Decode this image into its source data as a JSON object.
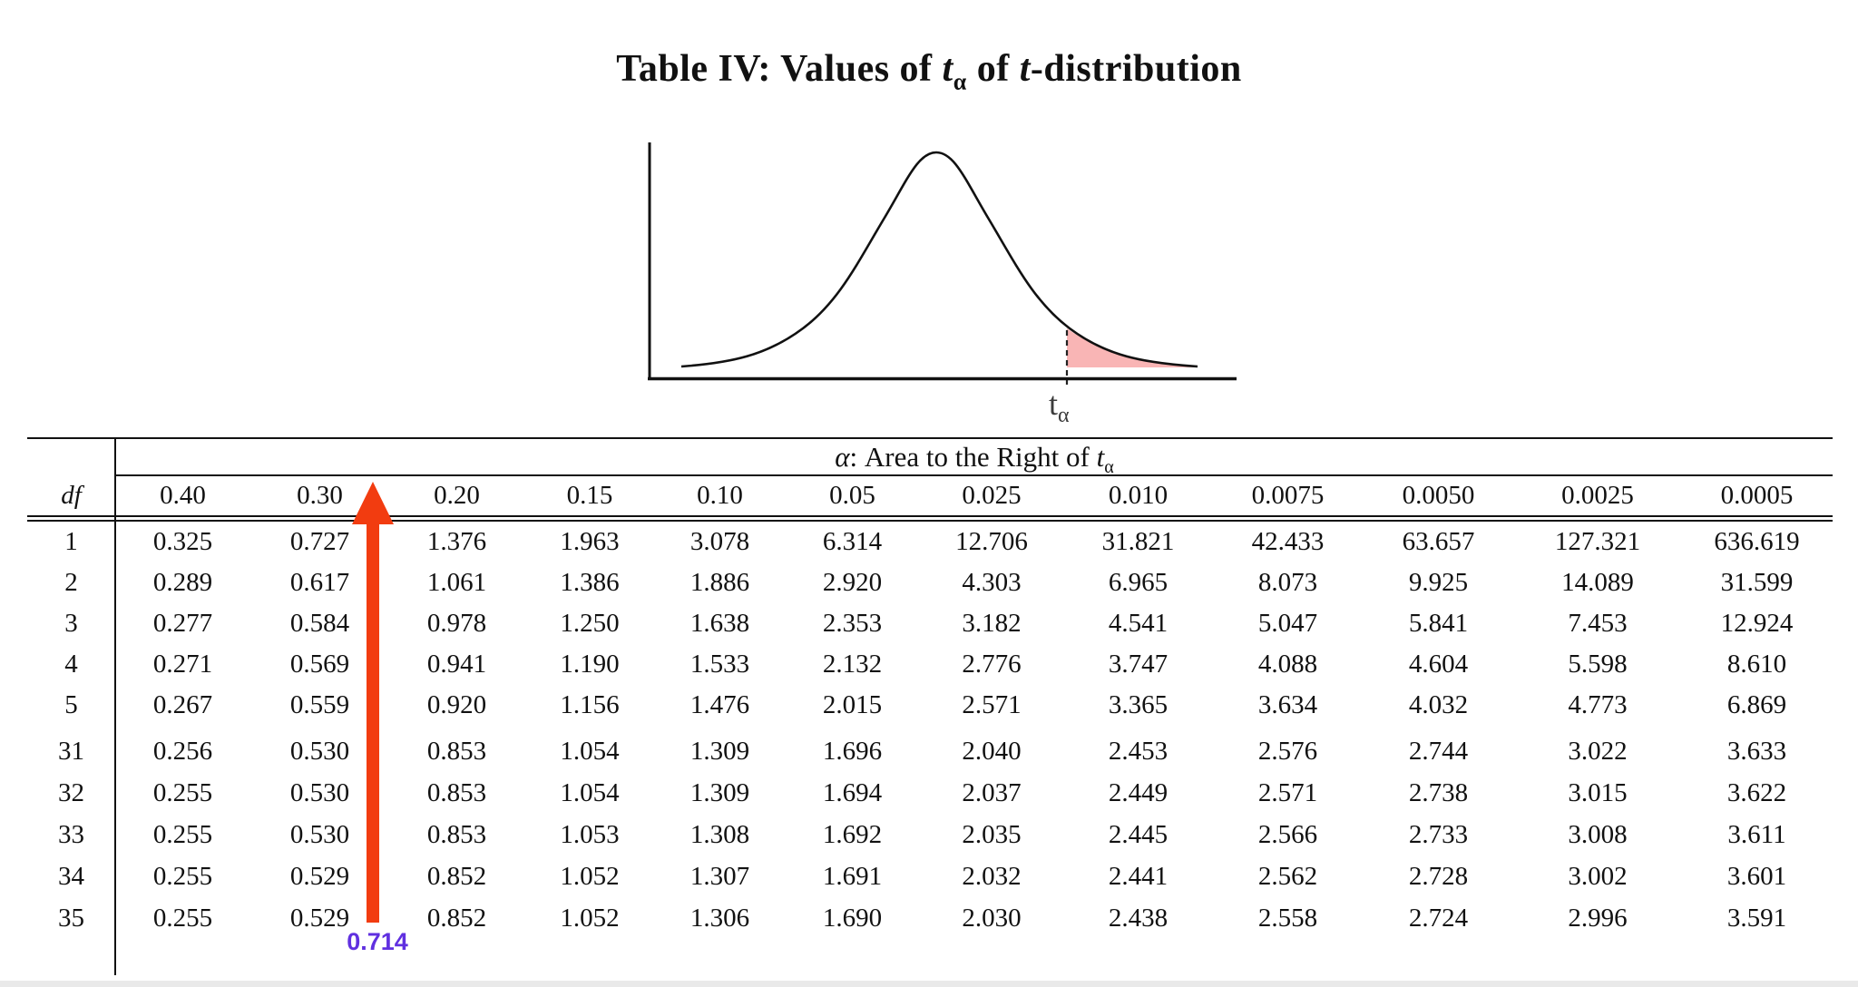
{
  "title": {
    "part1": "Table IV: Values of ",
    "t1": "t",
    "sub1": "α",
    "part2": " of ",
    "t2": "t",
    "part3": "-distribution"
  },
  "diagram": {
    "type": "t-distribution density curve with shaded right tail",
    "tail_label_t": "t",
    "tail_label_sub": "α",
    "curve_color": "#111111",
    "shade_color": "#f9b5b5"
  },
  "table": {
    "span_header": {
      "alpha": "α",
      "colon_text": ":  Area to the Right of ",
      "t": "t",
      "sub": "α"
    },
    "df_label": "df",
    "columns": [
      "0.40",
      "0.30",
      "0.20",
      "0.15",
      "0.10",
      "0.05",
      "0.025",
      "0.010",
      "0.0075",
      "0.0050",
      "0.0025",
      "0.0005"
    ],
    "rows_group1": [
      {
        "df": "1",
        "values": [
          "0.325",
          "0.727",
          "1.376",
          "1.963",
          "3.078",
          "6.314",
          "12.706",
          "31.821",
          "42.433",
          "63.657",
          "127.321",
          "636.619"
        ]
      },
      {
        "df": "2",
        "values": [
          "0.289",
          "0.617",
          "1.061",
          "1.386",
          "1.886",
          "2.920",
          "4.303",
          "6.965",
          "8.073",
          "9.925",
          "14.089",
          "31.599"
        ]
      },
      {
        "df": "3",
        "values": [
          "0.277",
          "0.584",
          "0.978",
          "1.250",
          "1.638",
          "2.353",
          "3.182",
          "4.541",
          "5.047",
          "5.841",
          "7.453",
          "12.924"
        ]
      },
      {
        "df": "4",
        "values": [
          "0.271",
          "0.569",
          "0.941",
          "1.190",
          "1.533",
          "2.132",
          "2.776",
          "3.747",
          "4.088",
          "4.604",
          "5.598",
          "8.610"
        ]
      },
      {
        "df": "5",
        "values": [
          "0.267",
          "0.559",
          "0.920",
          "1.156",
          "1.476",
          "2.015",
          "2.571",
          "3.365",
          "3.634",
          "4.032",
          "4.773",
          "6.869"
        ]
      }
    ],
    "rows_group2": [
      {
        "df": "31",
        "values": [
          "0.256",
          "0.530",
          "0.853",
          "1.054",
          "1.309",
          "1.696",
          "2.040",
          "2.453",
          "2.576",
          "2.744",
          "3.022",
          "3.633"
        ]
      },
      {
        "df": "32",
        "values": [
          "0.255",
          "0.530",
          "0.853",
          "1.054",
          "1.309",
          "1.694",
          "2.037",
          "2.449",
          "2.571",
          "2.738",
          "3.015",
          "3.622"
        ]
      },
      {
        "df": "33",
        "values": [
          "0.255",
          "0.530",
          "0.853",
          "1.053",
          "1.308",
          "1.692",
          "2.035",
          "2.445",
          "2.566",
          "2.733",
          "3.008",
          "3.611"
        ]
      },
      {
        "df": "34",
        "values": [
          "0.255",
          "0.529",
          "0.852",
          "1.052",
          "1.307",
          "1.691",
          "2.032",
          "2.441",
          "2.562",
          "2.728",
          "3.002",
          "3.601"
        ]
      },
      {
        "df": "35",
        "values": [
          "0.255",
          "0.529",
          "0.852",
          "1.052",
          "1.306",
          "1.690",
          "2.030",
          "2.438",
          "2.558",
          "2.724",
          "2.996",
          "3.591"
        ]
      }
    ]
  },
  "annotation": {
    "value_label": "0.714",
    "arrow_color": "#f23c10",
    "label_color": "#6030e0",
    "target_column": "0.20"
  }
}
